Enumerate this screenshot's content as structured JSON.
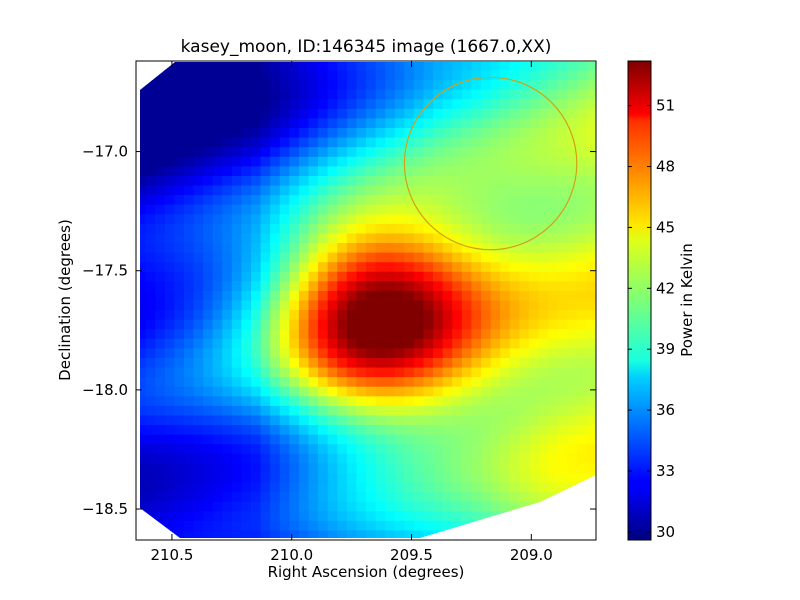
{
  "chart_data": {
    "type": "heatmap",
    "title": "kasey_moon, ID:146345 image (1667.0,XX)",
    "xlabel": "Right Ascension (degrees)",
    "ylabel": "Declination (degrees)",
    "xlim": [
      210.65,
      208.73
    ],
    "ylim": [
      -18.63,
      -16.62
    ],
    "x_ticks": [
      210.5,
      210.0,
      209.5,
      209.0
    ],
    "x_tick_labels": [
      "210.5",
      "210.0",
      "209.5",
      "209.0"
    ],
    "y_ticks": [
      -17.0,
      -17.5,
      -18.0,
      -18.5
    ],
    "y_tick_labels": [
      "−17.0",
      "−17.5",
      "−18.0",
      "−18.5"
    ],
    "colorbar": {
      "label": "Power in Kelvin",
      "range": [
        29.6,
        53.2
      ],
      "ticks": [
        30,
        33,
        36,
        39,
        42,
        45,
        48,
        51
      ],
      "tick_labels": [
        "30",
        "33",
        "36",
        "39",
        "42",
        "45",
        "48",
        "51"
      ],
      "colormap": "jet"
    },
    "peak": {
      "ra": 209.67,
      "dec": -17.68,
      "value": 53
    },
    "annotation_circle": {
      "ra": 209.17,
      "dec": -17.05,
      "radius_deg": 0.36,
      "color": "#d4a017"
    },
    "grid": false,
    "legend": "none"
  }
}
